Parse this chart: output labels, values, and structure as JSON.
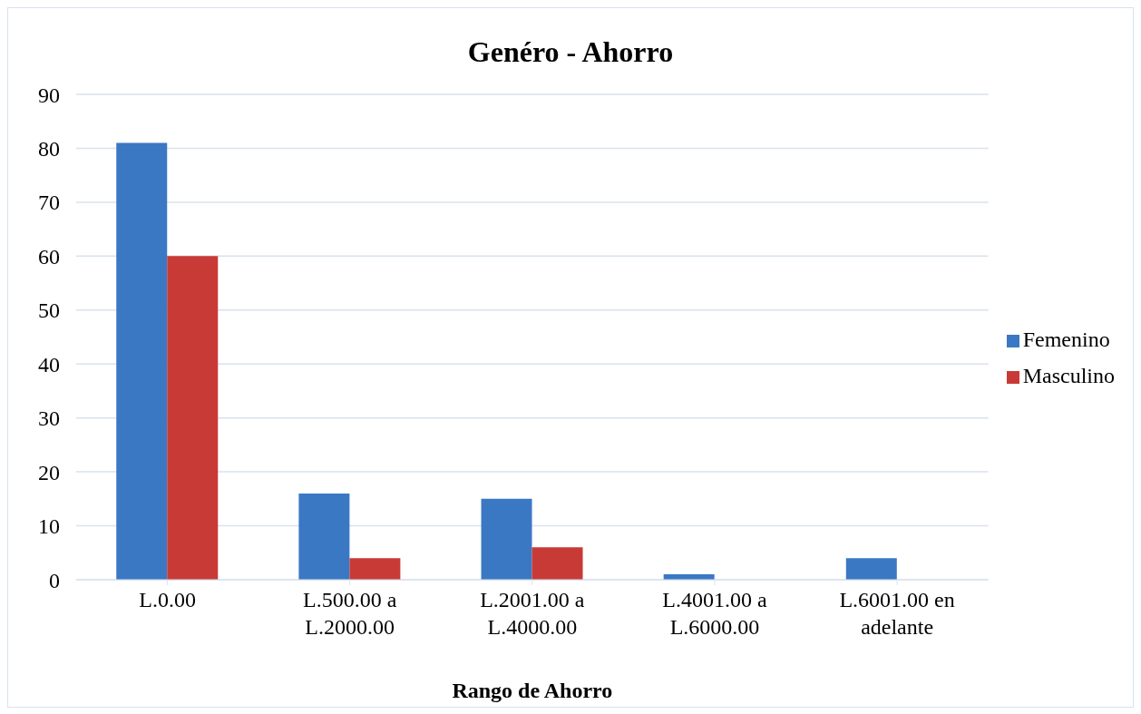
{
  "chart_data": {
    "type": "bar",
    "title": "Genéro - Ahorro",
    "xlabel": "Rango de Ahorro",
    "categories": [
      "L.0.00",
      "L.500.00 a L.2000.00",
      "L.2001.00 a L.4000.00",
      "L.4001.00 a L.6000.00",
      "L.6001.00 en adelante"
    ],
    "series": [
      {
        "name": "Femenino",
        "color": "#3a78c4",
        "values": [
          81,
          16,
          15,
          1,
          4
        ]
      },
      {
        "name": "Masculino",
        "color": "#c83a36",
        "values": [
          60,
          4,
          6,
          0,
          0
        ]
      }
    ],
    "ylim": [
      0,
      90
    ],
    "yticks": [
      0,
      10,
      20,
      30,
      40,
      50,
      60,
      70,
      80,
      90
    ],
    "grid": "y",
    "legend": "right"
  }
}
